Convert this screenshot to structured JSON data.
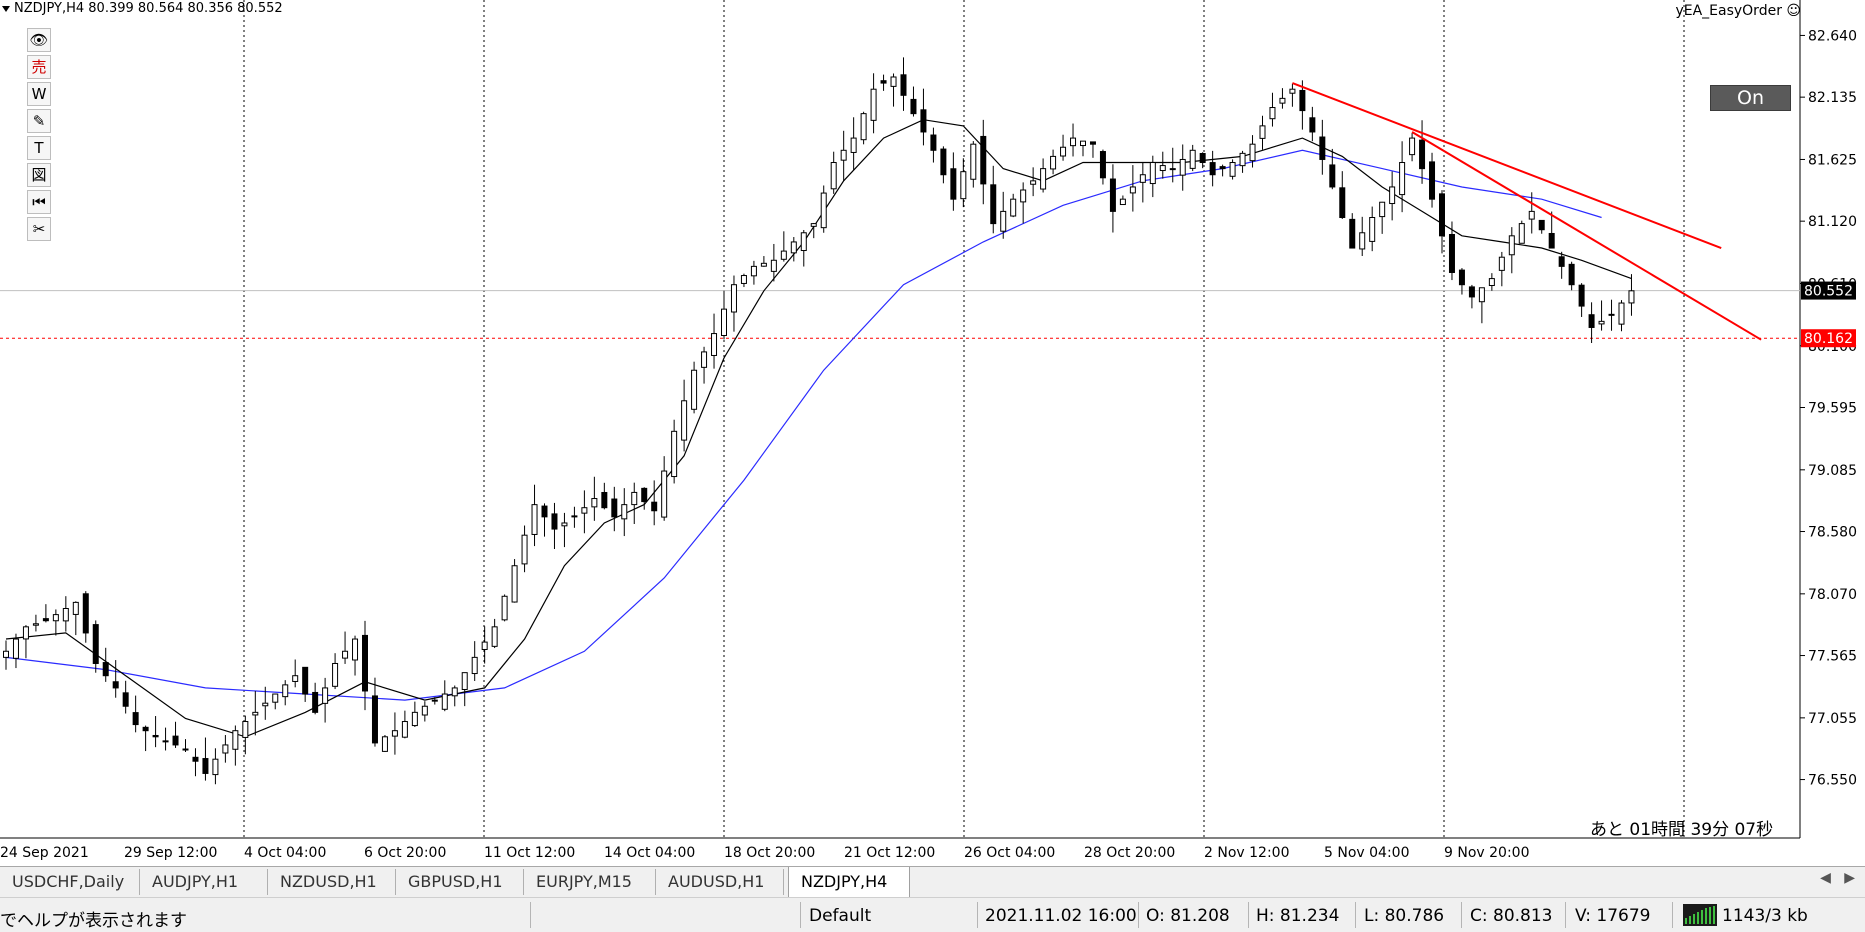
{
  "header": {
    "symbol_info": "NZDJPY,H4  80.399 80.564 80.356 80.552",
    "ea_label": "yEA_EasyOrder ☺"
  },
  "on_button": "On",
  "countdown": "あと 01時間  39分 07秒",
  "toolbar": [
    {
      "icon": "eye-icon",
      "glyph": "👁"
    },
    {
      "icon": "sell-icon",
      "glyph": "売"
    },
    {
      "icon": "w-icon",
      "glyph": "W"
    },
    {
      "icon": "pen-icon",
      "glyph": "✎"
    },
    {
      "icon": "text-icon",
      "glyph": "T"
    },
    {
      "icon": "figure-icon",
      "glyph": "図"
    },
    {
      "icon": "rewind-icon",
      "glyph": "⏮"
    },
    {
      "icon": "scissors-icon",
      "glyph": "✂"
    }
  ],
  "tabs": [
    "USDCHF,Daily",
    "AUDJPY,H1",
    "NZDUSD,H1",
    "GBPUSD,H1",
    "EURJPY,M15",
    "AUDUSD,H1",
    "NZDJPY,H4"
  ],
  "active_tab": "NZDJPY,H4",
  "status": {
    "help": "でヘルプが表示されます",
    "profile": "Default",
    "datetime": "2021.11.02 16:00",
    "open": "O: 81.208",
    "high": "H: 81.234",
    "low": "L: 80.786",
    "close": "C: 80.813",
    "volume": "V: 17679",
    "traffic": "1143/3 kb"
  },
  "chart_data": {
    "type": "candlestick",
    "symbol": "NZDJPY",
    "timeframe": "H4",
    "current_price": "80.552",
    "current_price_color": "#000000",
    "marked_price": "80.162",
    "marked_price_color": "#ff0000",
    "y_ticks": [
      "82.640",
      "82.135",
      "81.625",
      "81.120",
      "80.610",
      "80.100",
      "79.595",
      "79.085",
      "78.580",
      "78.070",
      "77.565",
      "77.055",
      "76.550"
    ],
    "ylim": [
      76.35,
      82.75
    ],
    "x_ticks": [
      "24 Sep 2021",
      "29 Sep 12:00",
      "4 Oct 04:00",
      "6 Oct 20:00",
      "11 Oct 12:00",
      "14 Oct 04:00",
      "18 Oct 20:00",
      "21 Oct 12:00",
      "26 Oct 04:00",
      "28 Oct 20:00",
      "2 Nov 12:00",
      "5 Nov 04:00",
      "9 Nov 20:00"
    ],
    "close_path": [
      {
        "x": 0,
        "y": 77.6
      },
      {
        "x": 2,
        "y": 77.8
      },
      {
        "x": 4,
        "y": 77.85
      },
      {
        "x": 7,
        "y": 78.0
      },
      {
        "x": 9,
        "y": 77.5
      },
      {
        "x": 11,
        "y": 77.3
      },
      {
        "x": 13,
        "y": 77.0
      },
      {
        "x": 15,
        "y": 76.9
      },
      {
        "x": 18,
        "y": 76.8
      },
      {
        "x": 20,
        "y": 76.6
      },
      {
        "x": 23,
        "y": 76.95
      },
      {
        "x": 25,
        "y": 77.1
      },
      {
        "x": 27,
        "y": 77.25
      },
      {
        "x": 29,
        "y": 77.4
      },
      {
        "x": 31,
        "y": 77.1
      },
      {
        "x": 33,
        "y": 77.5
      },
      {
        "x": 35,
        "y": 77.7
      },
      {
        "x": 37,
        "y": 76.85
      },
      {
        "x": 39,
        "y": 76.95
      },
      {
        "x": 41,
        "y": 77.1
      },
      {
        "x": 43,
        "y": 77.2
      },
      {
        "x": 45,
        "y": 77.3
      },
      {
        "x": 47,
        "y": 77.55
      },
      {
        "x": 49,
        "y": 77.8
      },
      {
        "x": 51,
        "y": 78.3
      },
      {
        "x": 53,
        "y": 78.8
      },
      {
        "x": 55,
        "y": 78.6
      },
      {
        "x": 57,
        "y": 78.7
      },
      {
        "x": 59,
        "y": 78.85
      },
      {
        "x": 61,
        "y": 78.7
      },
      {
        "x": 63,
        "y": 78.9
      },
      {
        "x": 65,
        "y": 78.75
      },
      {
        "x": 67,
        "y": 79.4
      },
      {
        "x": 69,
        "y": 79.9
      },
      {
        "x": 71,
        "y": 80.2
      },
      {
        "x": 73,
        "y": 80.6
      },
      {
        "x": 75,
        "y": 80.75
      },
      {
        "x": 77,
        "y": 80.8
      },
      {
        "x": 79,
        "y": 80.95
      },
      {
        "x": 81,
        "y": 81.1
      },
      {
        "x": 83,
        "y": 81.6
      },
      {
        "x": 85,
        "y": 81.8
      },
      {
        "x": 87,
        "y": 82.2
      },
      {
        "x": 89,
        "y": 82.3
      },
      {
        "x": 91,
        "y": 82.0
      },
      {
        "x": 93,
        "y": 81.7
      },
      {
        "x": 95,
        "y": 81.3
      },
      {
        "x": 97,
        "y": 81.75
      },
      {
        "x": 99,
        "y": 81.1
      },
      {
        "x": 101,
        "y": 81.3
      },
      {
        "x": 103,
        "y": 81.45
      },
      {
        "x": 105,
        "y": 81.65
      },
      {
        "x": 107,
        "y": 81.8
      },
      {
        "x": 109,
        "y": 81.75
      },
      {
        "x": 111,
        "y": 81.2
      },
      {
        "x": 113,
        "y": 81.4
      },
      {
        "x": 115,
        "y": 81.6
      },
      {
        "x": 117,
        "y": 81.55
      },
      {
        "x": 119,
        "y": 81.7
      },
      {
        "x": 121,
        "y": 81.5
      },
      {
        "x": 123,
        "y": 81.6
      },
      {
        "x": 125,
        "y": 81.75
      },
      {
        "x": 127,
        "y": 82.05
      },
      {
        "x": 129,
        "y": 82.2
      },
      {
        "x": 131,
        "y": 81.85
      },
      {
        "x": 133,
        "y": 81.4
      },
      {
        "x": 135,
        "y": 80.9
      },
      {
        "x": 137,
        "y": 81.15
      },
      {
        "x": 139,
        "y": 81.4
      },
      {
        "x": 141,
        "y": 81.8
      },
      {
        "x": 143,
        "y": 81.3
      },
      {
        "x": 145,
        "y": 80.7
      },
      {
        "x": 147,
        "y": 80.5
      },
      {
        "x": 149,
        "y": 80.65
      },
      {
        "x": 151,
        "y": 81.0
      },
      {
        "x": 153,
        "y": 81.2
      },
      {
        "x": 155,
        "y": 80.9
      },
      {
        "x": 157,
        "y": 80.6
      },
      {
        "x": 159,
        "y": 80.25
      },
      {
        "x": 161,
        "y": 80.35
      },
      {
        "x": 163,
        "y": 80.55
      }
    ],
    "ma_short": [
      {
        "x": 0,
        "y": 77.7
      },
      {
        "x": 6,
        "y": 77.75
      },
      {
        "x": 12,
        "y": 77.4
      },
      {
        "x": 18,
        "y": 77.05
      },
      {
        "x": 24,
        "y": 76.9
      },
      {
        "x": 30,
        "y": 77.1
      },
      {
        "x": 36,
        "y": 77.35
      },
      {
        "x": 42,
        "y": 77.2
      },
      {
        "x": 48,
        "y": 77.3
      },
      {
        "x": 52,
        "y": 77.7
      },
      {
        "x": 56,
        "y": 78.3
      },
      {
        "x": 60,
        "y": 78.65
      },
      {
        "x": 64,
        "y": 78.8
      },
      {
        "x": 68,
        "y": 79.2
      },
      {
        "x": 72,
        "y": 80.0
      },
      {
        "x": 76,
        "y": 80.55
      },
      {
        "x": 80,
        "y": 80.95
      },
      {
        "x": 84,
        "y": 81.45
      },
      {
        "x": 88,
        "y": 81.8
      },
      {
        "x": 92,
        "y": 81.95
      },
      {
        "x": 96,
        "y": 81.9
      },
      {
        "x": 100,
        "y": 81.55
      },
      {
        "x": 104,
        "y": 81.45
      },
      {
        "x": 108,
        "y": 81.6
      },
      {
        "x": 112,
        "y": 81.6
      },
      {
        "x": 118,
        "y": 81.6
      },
      {
        "x": 124,
        "y": 81.65
      },
      {
        "x": 130,
        "y": 81.8
      },
      {
        "x": 134,
        "y": 81.65
      },
      {
        "x": 138,
        "y": 81.4
      },
      {
        "x": 142,
        "y": 81.2
      },
      {
        "x": 146,
        "y": 81.0
      },
      {
        "x": 150,
        "y": 80.95
      },
      {
        "x": 154,
        "y": 80.9
      },
      {
        "x": 158,
        "y": 80.8
      },
      {
        "x": 163,
        "y": 80.65
      }
    ],
    "ma_long": [
      {
        "x": 0,
        "y": 77.55
      },
      {
        "x": 10,
        "y": 77.45
      },
      {
        "x": 20,
        "y": 77.3
      },
      {
        "x": 30,
        "y": 77.25
      },
      {
        "x": 40,
        "y": 77.2
      },
      {
        "x": 50,
        "y": 77.3
      },
      {
        "x": 58,
        "y": 77.6
      },
      {
        "x": 66,
        "y": 78.2
      },
      {
        "x": 74,
        "y": 79.0
      },
      {
        "x": 82,
        "y": 79.9
      },
      {
        "x": 90,
        "y": 80.6
      },
      {
        "x": 98,
        "y": 80.95
      },
      {
        "x": 106,
        "y": 81.25
      },
      {
        "x": 114,
        "y": 81.45
      },
      {
        "x": 122,
        "y": 81.55
      },
      {
        "x": 130,
        "y": 81.7
      },
      {
        "x": 138,
        "y": 81.55
      },
      {
        "x": 146,
        "y": 81.4
      },
      {
        "x": 154,
        "y": 81.3
      },
      {
        "x": 160,
        "y": 81.15
      }
    ],
    "trendlines": [
      {
        "x1": 129,
        "y1": 82.25,
        "x2": 172,
        "y2": 80.9,
        "color": "#ff0000"
      },
      {
        "x1": 141,
        "y1": 81.85,
        "x2": 176,
        "y2": 80.15,
        "color": "#ff0000"
      }
    ],
    "x_max": 180,
    "grid": "vertical-dotted"
  }
}
